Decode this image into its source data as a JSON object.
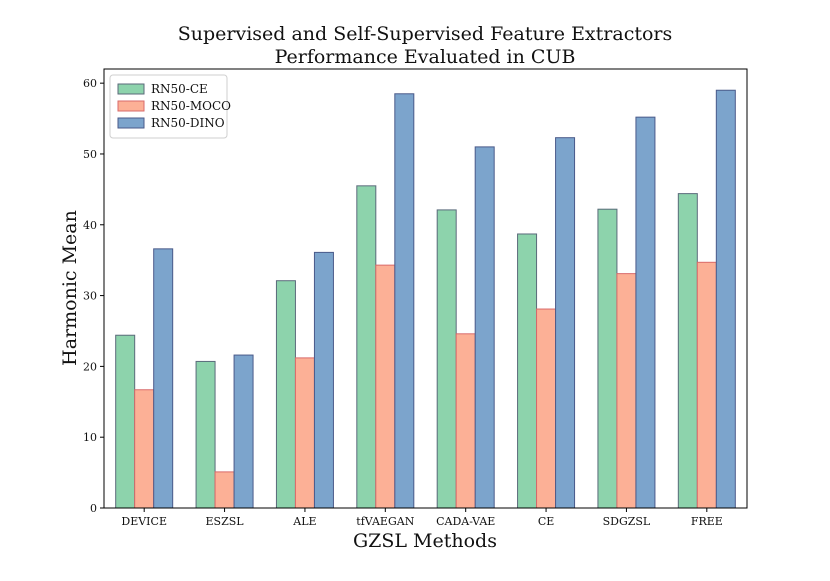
{
  "chart_data": {
    "type": "bar",
    "title_lines": [
      "Supervised and Self-Supervised Feature Extractors",
      "Performance Evaluated in CUB"
    ],
    "xlabel": "GZSL Methods",
    "ylabel": "Harmonic Mean",
    "categories": [
      "DEVICE",
      "ESZSL",
      "ALE",
      "tfVAEGAN",
      "CADA-VAE",
      "CE",
      "SDGZSL",
      "FREE"
    ],
    "ylim": [
      0,
      62
    ],
    "yticks": [
      0,
      10,
      20,
      30,
      40,
      50,
      60
    ],
    "legend_position": "top-left",
    "series": [
      {
        "name": "RN50-CE",
        "color": "#8dd3ac",
        "edge": "#5a6a7a",
        "values": [
          24.4,
          20.7,
          32.1,
          45.5,
          42.1,
          38.7,
          42.2,
          44.4
        ]
      },
      {
        "name": "RN50-MOCO",
        "color": "#fcb096",
        "edge": "#d96a6a",
        "values": [
          16.7,
          5.1,
          21.2,
          34.3,
          24.6,
          28.1,
          33.1,
          34.7
        ]
      },
      {
        "name": "RN50-DINO",
        "color": "#7ca4cc",
        "edge": "#4a5a8a",
        "values": [
          36.6,
          21.6,
          36.1,
          58.5,
          51.0,
          52.3,
          55.2,
          59.0
        ]
      }
    ]
  }
}
